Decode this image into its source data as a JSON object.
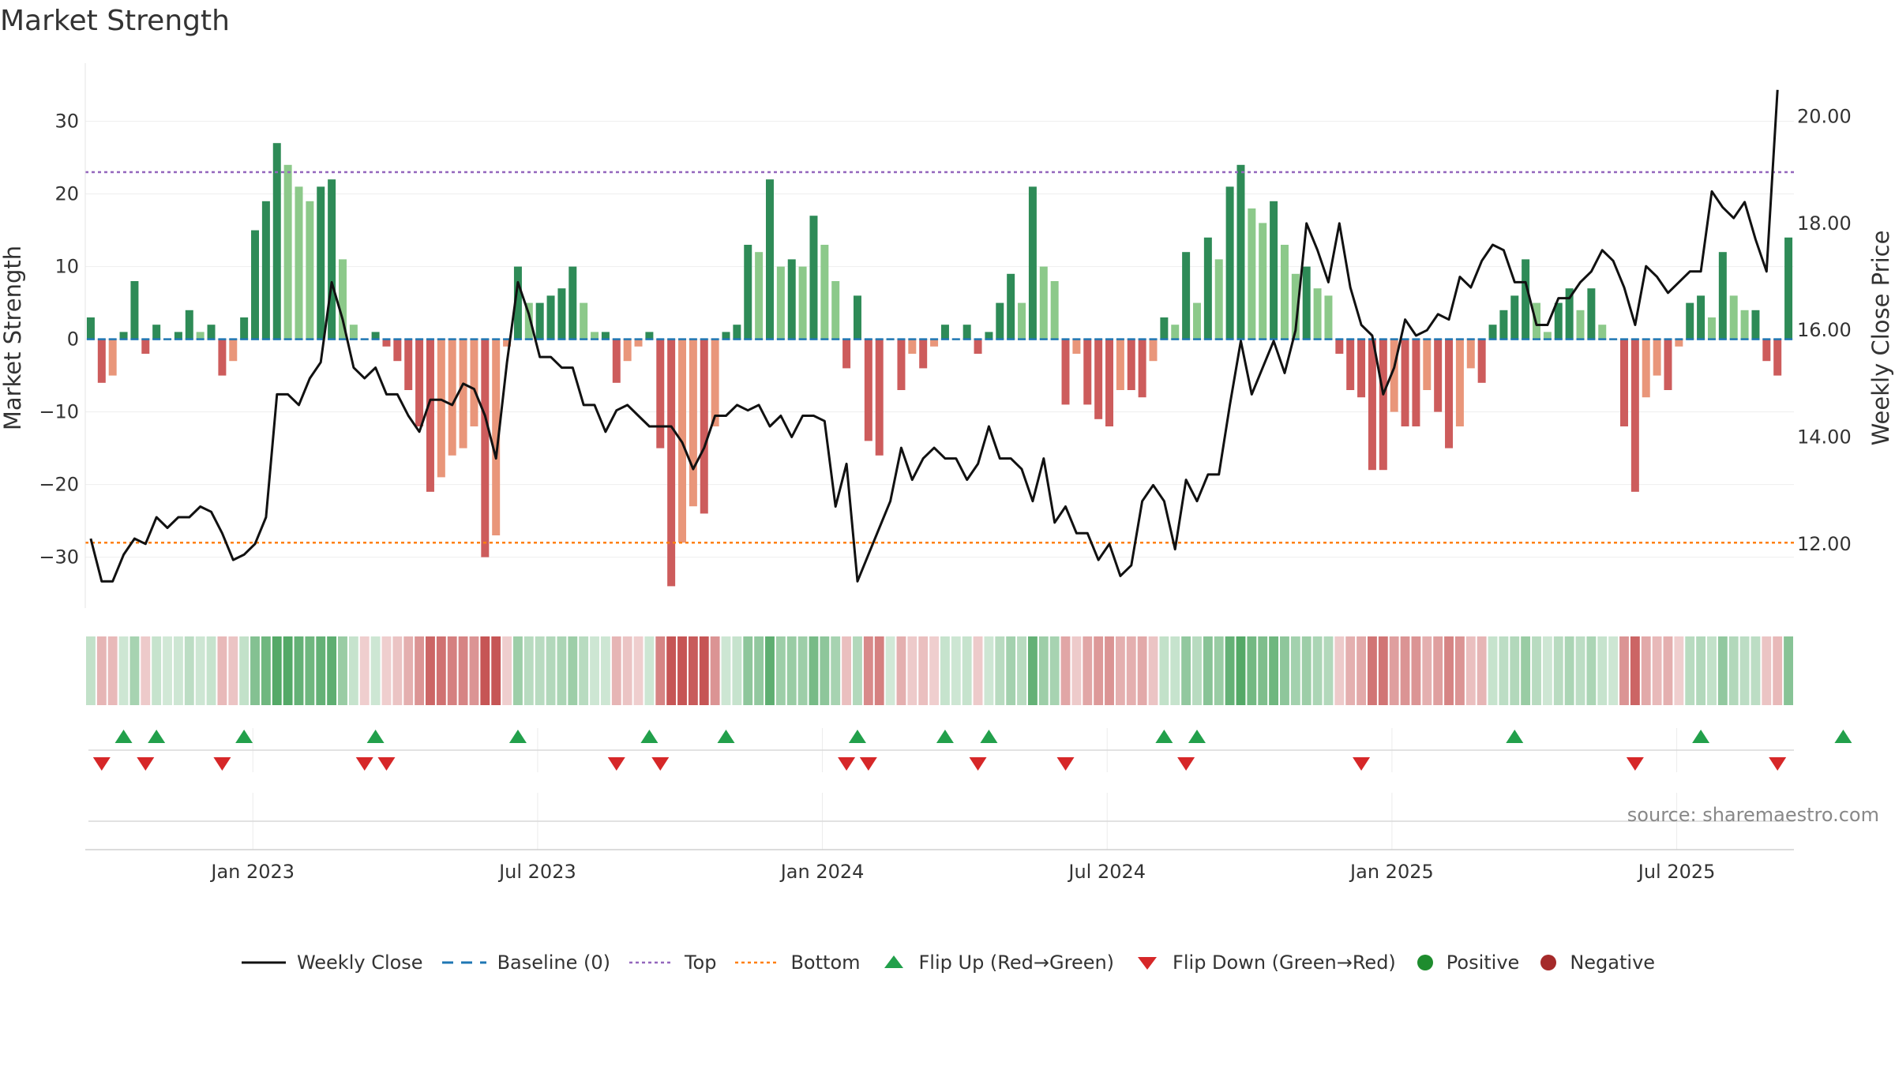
{
  "chart_data": {
    "type": "bar+line",
    "title": "Market Strength",
    "ylabel_left": "Market Strength",
    "ylabel_right": "Weekly Close Price",
    "ylim_left": [
      -37,
      38
    ],
    "ylim_right": [
      10.8,
      21.0
    ],
    "yticks_left": [
      30,
      20,
      10,
      0,
      -10,
      -20,
      -30
    ],
    "yticks_left_labels": [
      "30",
      "20",
      "10",
      "0",
      "−10",
      "−20",
      "−30"
    ],
    "yticks_right": [
      "20.00",
      "18.00",
      "16.00",
      "14.00",
      "12.00"
    ],
    "x_tick_labels": [
      "Jan 2023",
      "Jul 2023",
      "Jan 2024",
      "Jul 2024",
      "Jan 2025",
      "Jul 2025"
    ],
    "x_tick_index": [
      15.3,
      41.3,
      67.3,
      93.3,
      119.3,
      145.3
    ],
    "top_line": 23,
    "bottom_line": -28,
    "source": "source: sharemaestro.com",
    "strength": [
      3,
      -6,
      -5,
      1,
      8,
      -2,
      2,
      0,
      1,
      4,
      1,
      2,
      -5,
      -3,
      3,
      15,
      19,
      27,
      24,
      21,
      19,
      21,
      22,
      11,
      2,
      0,
      1,
      -1,
      -3,
      -7,
      -12,
      -21,
      -19,
      -16,
      -15,
      -12,
      -30,
      -27,
      -1,
      10,
      5,
      5,
      6,
      7,
      10,
      5,
      1,
      1,
      -6,
      -3,
      -1,
      1,
      -15,
      -34,
      -28,
      -23,
      -24,
      -12,
      1,
      2,
      13,
      12,
      22,
      10,
      11,
      10,
      17,
      13,
      8,
      -4,
      6,
      -14,
      -16,
      0,
      -7,
      -2,
      -4,
      -1,
      2,
      0,
      2,
      -2,
      1,
      5,
      9,
      5,
      21,
      10,
      8,
      -9,
      -2,
      -9,
      -11,
      -12,
      -7,
      -7,
      -8,
      -3,
      3,
      2,
      12,
      5,
      14,
      11,
      21,
      24,
      18,
      16,
      19,
      13,
      9,
      10,
      7,
      6,
      -2,
      -7,
      -8,
      -18,
      -18,
      -10,
      -12,
      -12,
      -7,
      -10,
      -15,
      -12,
      -4,
      -6,
      2,
      4,
      6,
      11,
      5,
      1,
      5,
      7,
      4,
      7,
      2,
      0,
      -12,
      -21,
      -8,
      -5,
      -7,
      -1,
      5,
      6,
      3,
      12,
      6,
      4,
      4,
      -3,
      -5,
      14
    ],
    "close": [
      12.1,
      11.3,
      11.3,
      11.8,
      12.1,
      12.0,
      12.5,
      12.3,
      12.5,
      12.5,
      12.7,
      12.6,
      12.2,
      11.7,
      11.8,
      12.0,
      12.5,
      14.8,
      14.8,
      14.6,
      15.1,
      15.4,
      16.9,
      16.2,
      15.3,
      15.1,
      15.3,
      14.8,
      14.8,
      14.4,
      14.1,
      14.7,
      14.7,
      14.6,
      15.0,
      14.9,
      14.4,
      13.6,
      15.4,
      16.9,
      16.3,
      15.5,
      15.5,
      15.3,
      15.3,
      14.6,
      14.6,
      14.1,
      14.5,
      14.6,
      14.4,
      14.2,
      14.2,
      14.2,
      13.9,
      13.4,
      13.8,
      14.4,
      14.4,
      14.6,
      14.5,
      14.6,
      14.2,
      14.4,
      14.0,
      14.4,
      14.4,
      14.3,
      12.7,
      13.5,
      11.3,
      11.8,
      12.3,
      12.8,
      13.8,
      13.2,
      13.6,
      13.8,
      13.6,
      13.6,
      13.2,
      13.5,
      14.2,
      13.6,
      13.6,
      13.4,
      12.8,
      13.6,
      12.4,
      12.7,
      12.2,
      12.2,
      11.7,
      12.0,
      11.4,
      11.6,
      12.8,
      13.1,
      12.8,
      11.9,
      13.2,
      12.8,
      13.3,
      13.3,
      14.6,
      15.8,
      14.8,
      15.3,
      15.8,
      15.2,
      16.0,
      18.0,
      17.5,
      16.9,
      18.0,
      16.8,
      16.1,
      15.9,
      14.8,
      15.3,
      16.2,
      15.9,
      16.0,
      16.3,
      16.2,
      17.0,
      16.8,
      17.3,
      17.6,
      17.5,
      16.9,
      16.9,
      16.1,
      16.1,
      16.6,
      16.6,
      16.9,
      17.1,
      17.5,
      17.3,
      16.8,
      16.1,
      17.2,
      17.0,
      16.7,
      16.9,
      17.1,
      17.1,
      18.6,
      18.3,
      18.1,
      18.4,
      17.7,
      17.1,
      20.5
    ],
    "heat_strength": [
      3,
      -6,
      -5,
      1,
      8,
      -2,
      2,
      0,
      1,
      4,
      1,
      2,
      -5,
      -3,
      3,
      15,
      19,
      27,
      24,
      21,
      19,
      21,
      22,
      11,
      2,
      -1,
      1,
      -1,
      -3,
      -7,
      -12,
      -21,
      -19,
      -16,
      -15,
      -12,
      -30,
      -27,
      -1,
      10,
      5,
      5,
      6,
      7,
      10,
      5,
      1,
      1,
      -6,
      -3,
      -1,
      1,
      -15,
      -34,
      -28,
      -23,
      -24,
      -12,
      1,
      2,
      13,
      12,
      22,
      10,
      11,
      10,
      17,
      13,
      8,
      -4,
      6,
      -14,
      -16,
      0,
      -7,
      -2,
      -4,
      -1,
      2,
      1,
      2,
      -2,
      1,
      5,
      9,
      5,
      21,
      10,
      8,
      -9,
      -2,
      -9,
      -11,
      -12,
      -7,
      -7,
      -8,
      -3,
      3,
      2,
      12,
      5,
      14,
      11,
      21,
      24,
      18,
      16,
      19,
      13,
      9,
      10,
      7,
      6,
      -2,
      -7,
      -8,
      -18,
      -18,
      -10,
      -12,
      -12,
      -7,
      -10,
      -15,
      -12,
      -4,
      -6,
      2,
      4,
      6,
      11,
      5,
      1,
      5,
      7,
      4,
      7,
      2,
      1,
      -12,
      -21,
      -8,
      -5,
      -7,
      -1,
      5,
      6,
      3,
      12,
      6,
      4,
      4,
      -3,
      -5,
      14
    ],
    "flip_up": [
      3,
      6,
      14,
      26,
      39,
      51,
      58,
      70,
      78,
      82,
      98,
      101,
      130,
      147,
      160
    ],
    "flip_down": [
      1,
      5,
      12,
      25,
      27,
      48,
      52,
      69,
      71,
      81,
      89,
      100,
      116,
      141,
      154
    ],
    "legend": [
      "Weekly Close",
      "Baseline (0)",
      "Top",
      "Bottom",
      "Flip Up (Red→Green)",
      "Flip Down (Green→Red)",
      "Positive",
      "Negative"
    ],
    "colors": {
      "pos_strong": "#2e8b57",
      "pos_mid": "#5fa86c",
      "pos_light": "#8cc98a",
      "neg_strong": "#cd5c5c",
      "neg_light": "#e9967a",
      "line": "#111111",
      "baseline": "#1f77b4",
      "top": "#9467bd",
      "bottom": "#ff7f0e",
      "flip_up": "#22a04b",
      "flip_down": "#d62728",
      "positive": "#1e8c2e",
      "negative": "#a52a2a"
    }
  }
}
